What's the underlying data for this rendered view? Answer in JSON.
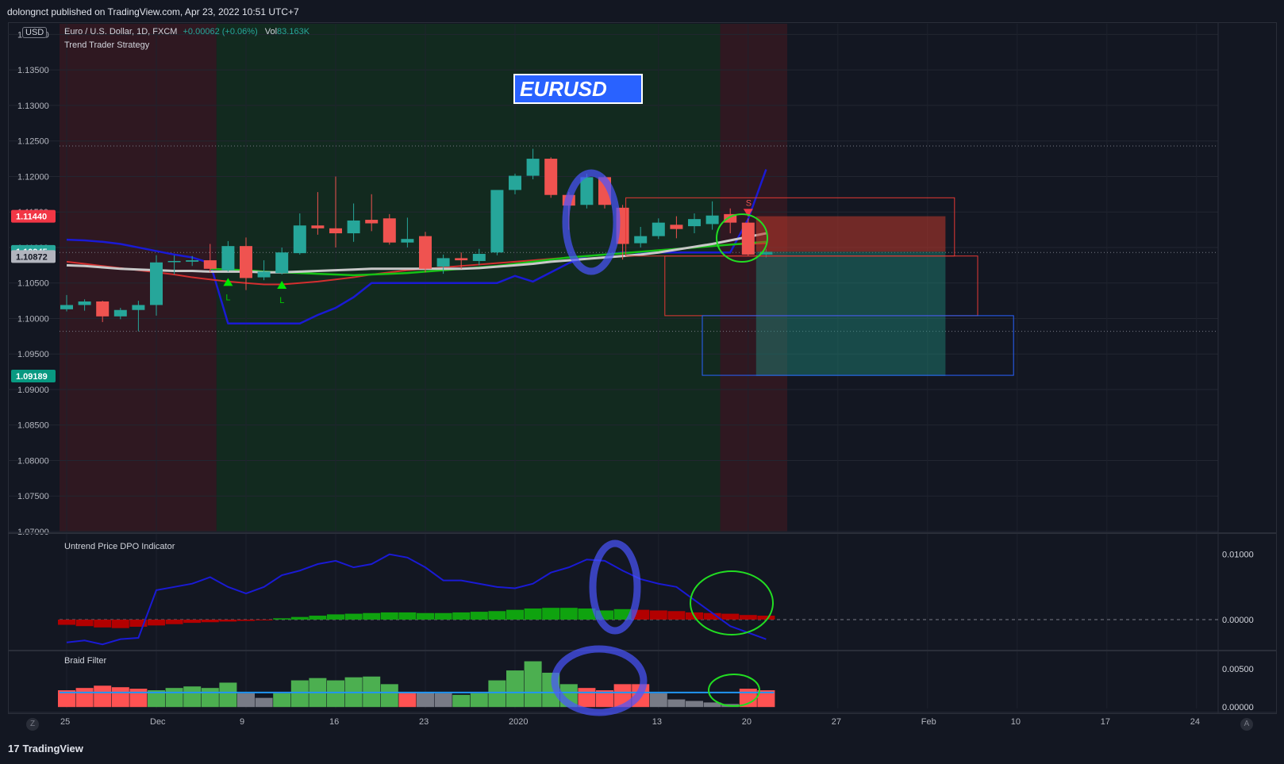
{
  "publisher_line": "dolongnct published on TradingView.com, Apr 23, 2022 10:51 UTC+7",
  "footer_brand": "TradingView",
  "currency_button": "USD",
  "symbol_legend": {
    "symbol": "Euro / U.S. Dollar, 1D, FXCM",
    "change": "+0.00062 (+0.06%)",
    "vol_label": "Vol",
    "vol_value": "83.163K",
    "strategy": "Trend Trader Strategy"
  },
  "annotation_label": "EURUSD",
  "scale_buttons": {
    "z": "Z",
    "a": "A"
  },
  "price_labels": [
    {
      "text": "1.11440",
      "value": 1.1144,
      "color": "#f23645"
    },
    {
      "text": "1.10945",
      "value": 1.10945,
      "color": "#26a69a"
    },
    {
      "text": "1.10872",
      "value": 1.10872,
      "color": "#b2b5be"
    },
    {
      "text": "1.09189",
      "value": 1.09189,
      "color": "#089981"
    }
  ],
  "chart_data": [
    {
      "type": "candlestick",
      "title": "Euro / U.S. Dollar, 1D, FXCM",
      "ylim": [
        1.07,
        1.1415
      ],
      "y_ticks": [
        "1.07000",
        "1.07500",
        "1.08000",
        "1.08500",
        "1.09000",
        "1.09500",
        "1.10000",
        "1.10500",
        "1.11000",
        "1.11500",
        "1.12000",
        "1.12500",
        "1.13000",
        "1.13500",
        "1.14000"
      ],
      "x_ticks": [
        "25",
        "Dec",
        "9",
        "16",
        "23",
        "2020",
        "13",
        "20",
        "27",
        "Feb",
        "10",
        "17",
        "24"
      ],
      "candles": [
        [
          1.1013,
          1.1033,
          1.101,
          1.1019
        ],
        [
          1.1019,
          1.1027,
          1.1011,
          1.1024
        ],
        [
          1.1024,
          1.1025,
          1.0995,
          1.1003
        ],
        [
          1.1003,
          1.1015,
          1.0999,
          1.1012
        ],
        [
          1.1012,
          1.1025,
          1.0982,
          1.1019
        ],
        [
          1.1019,
          1.1089,
          1.1004,
          1.1079
        ],
        [
          1.108,
          1.1089,
          1.1062,
          1.1081
        ],
        [
          1.108,
          1.1088,
          1.1074,
          1.1082
        ],
        [
          1.1082,
          1.1105,
          1.1065,
          1.107
        ],
        [
          1.1068,
          1.1109,
          1.1066,
          1.1102
        ],
        [
          1.1102,
          1.1114,
          1.104,
          1.1057
        ],
        [
          1.1058,
          1.1082,
          1.1054,
          1.1066
        ],
        [
          1.1064,
          1.11,
          1.1062,
          1.1093
        ],
        [
          1.1092,
          1.1148,
          1.109,
          1.1131
        ],
        [
          1.1131,
          1.1178,
          1.1118,
          1.1127
        ],
        [
          1.1127,
          1.12,
          1.11,
          1.112
        ],
        [
          1.112,
          1.1162,
          1.1108,
          1.1138
        ],
        [
          1.1139,
          1.1175,
          1.1123,
          1.1134
        ],
        [
          1.1141,
          1.1147,
          1.1104,
          1.1107
        ],
        [
          1.1107,
          1.1142,
          1.11,
          1.1112
        ],
        [
          1.1116,
          1.1122,
          1.1065,
          1.107
        ],
        [
          1.1073,
          1.109,
          1.1063,
          1.1085
        ],
        [
          1.1085,
          1.1093,
          1.107,
          1.1082
        ],
        [
          1.1081,
          1.1098,
          1.1075,
          1.1091
        ],
        [
          1.1093,
          1.1175,
          1.1089,
          1.1181
        ],
        [
          1.1181,
          1.1204,
          1.1175,
          1.1201
        ],
        [
          1.1201,
          1.1239,
          1.1196,
          1.1225
        ],
        [
          1.1225,
          1.1227,
          1.117,
          1.1174
        ],
        [
          1.1174,
          1.1178,
          1.1125,
          1.1159
        ],
        [
          1.116,
          1.1204,
          1.1155,
          1.1199
        ],
        [
          1.1199,
          1.1201,
          1.1155,
          1.116
        ],
        [
          1.1156,
          1.116,
          1.1083,
          1.1105
        ],
        [
          1.1106,
          1.1129,
          1.11,
          1.1116
        ],
        [
          1.1116,
          1.1141,
          1.1112,
          1.1135
        ],
        [
          1.1132,
          1.1144,
          1.1113,
          1.1126
        ],
        [
          1.113,
          1.1148,
          1.112,
          1.114
        ],
        [
          1.1133,
          1.1165,
          1.1125,
          1.1145
        ],
        [
          1.1147,
          1.1155,
          1.112,
          1.1135
        ],
        [
          1.1135,
          1.1141,
          1.1088,
          1.109
        ],
        [
          1.109,
          1.1098,
          1.1086,
          1.1094
        ]
      ],
      "ma_white": [
        1.1075,
        1.1074,
        1.1072,
        1.107,
        1.1069,
        1.1068,
        1.1067,
        1.1067,
        1.1066,
        1.1066,
        1.1066,
        1.1065,
        1.1065,
        1.1066,
        1.1067,
        1.1068,
        1.1069,
        1.107,
        1.107,
        1.107,
        1.107,
        1.107,
        1.107,
        1.1071,
        1.1073,
        1.1075,
        1.1077,
        1.108,
        1.1082,
        1.1084,
        1.1086,
        1.1088,
        1.109,
        1.1093,
        1.1097,
        1.1101,
        1.1105,
        1.111,
        1.1115,
        1.112
      ],
      "ma_red": [
        1.108,
        1.1077,
        1.1074,
        1.1071,
        1.1068,
        1.1065,
        1.1062,
        1.1058,
        1.1055,
        1.1052,
        1.105,
        1.1048,
        1.1048,
        1.105,
        1.1052,
        1.1055,
        1.1058,
        1.1062,
        1.1065,
        1.1068,
        1.107,
        1.1072,
        1.1074,
        1.1076,
        1.1078,
        1.108,
        1.1082,
        1.1084,
        1.1086,
        1.1088,
        1.109,
        1.1092,
        1.1094,
        1.1096,
        1.1098,
        1.11,
        1.1102,
        1.1104,
        1.1105,
        1.1106
      ],
      "ma_green": [
        null,
        null,
        null,
        null,
        null,
        null,
        null,
        null,
        1.107,
        1.1069,
        1.1068,
        1.1066,
        1.1065,
        1.1064,
        1.1063,
        1.1062,
        1.1061,
        1.1062,
        1.1063,
        1.1064,
        1.1066,
        1.1068,
        1.107,
        1.1072,
        1.1074,
        1.1077,
        1.108,
        1.1083,
        1.1086,
        1.1088,
        1.109,
        1.1092,
        1.1094,
        1.1096,
        1.1098,
        1.11,
        1.1102,
        1.1104,
        1.1106,
        1.1108
      ],
      "trail_blue": [
        1.1111,
        1.111,
        1.1108,
        1.1105,
        1.11,
        1.1095,
        1.109,
        1.1086,
        1.1078,
        1.0993,
        1.0993,
        1.0993,
        1.0993,
        1.0993,
        1.1005,
        1.1015,
        1.103,
        1.105,
        1.105,
        1.105,
        1.105,
        1.105,
        1.105,
        1.105,
        1.105,
        1.106,
        1.1052,
        1.1065,
        1.1078,
        1.1088,
        1.109,
        1.1093,
        1.1093,
        1.1093,
        1.1093,
        1.1093,
        1.1093,
        1.1093,
        1.114,
        1.121
      ],
      "signals": [
        {
          "label": "L",
          "index": 9,
          "dir": "long"
        },
        {
          "label": "L",
          "index": 12,
          "dir": "long"
        },
        {
          "label": "S",
          "index": 38,
          "dir": "short"
        }
      ]
    },
    {
      "type": "bar",
      "title": "Untrend Price DPO Indicator",
      "ylim": [
        -0.0045,
        0.013
      ],
      "y_ticks": [
        "0.01000",
        "0.00000"
      ],
      "values": [
        -0.0008,
        -0.001,
        -0.0012,
        -0.0013,
        -0.0011,
        -0.0009,
        -0.0007,
        -0.0005,
        -0.0004,
        -0.0003,
        -0.0002,
        -0.0001,
        0.0002,
        0.0004,
        0.0006,
        0.0008,
        0.0009,
        0.001,
        0.0011,
        0.0011,
        0.001,
        0.001,
        0.0011,
        0.0012,
        0.0013,
        0.0015,
        0.0017,
        0.0018,
        0.0018,
        0.0017,
        0.0014,
        0.0016,
        0.0015,
        0.0014,
        0.0013,
        0.0011,
        0.001,
        0.0009,
        0.0007,
        0.0006
      ],
      "line": [
        -0.0035,
        -0.0032,
        -0.0038,
        -0.003,
        -0.0028,
        0.0045,
        0.005,
        0.0055,
        0.0065,
        0.005,
        0.004,
        0.005,
        0.0068,
        0.0075,
        0.0085,
        0.009,
        0.008,
        0.0085,
        0.01,
        0.0095,
        0.008,
        0.006,
        0.006,
        0.0055,
        0.005,
        0.0048,
        0.0055,
        0.0072,
        0.008,
        0.0092,
        0.009,
        0.0075,
        0.0062,
        0.0055,
        0.005,
        0.003,
        0.001,
        -0.001,
        -0.002,
        -0.003
      ]
    },
    {
      "type": "bar",
      "title": "Braid Filter",
      "ylim": [
        -0.0005,
        0.0072
      ],
      "y_ticks": [
        "0.00500",
        "0.00000"
      ],
      "values": [
        0.0022,
        0.0025,
        0.0028,
        0.0026,
        0.0024,
        0.0022,
        0.0025,
        0.0027,
        0.0025,
        0.0032,
        0.0018,
        0.0012,
        0.0018,
        0.0035,
        0.0038,
        0.0035,
        0.0039,
        0.004,
        0.003,
        0.002,
        0.002,
        0.0018,
        0.0016,
        0.0018,
        0.0035,
        0.0048,
        0.006,
        0.0045,
        0.003,
        0.0025,
        0.0022,
        0.003,
        0.003,
        0.0018,
        0.001,
        0.0008,
        0.0006,
        0.0004,
        0.0024,
        0.0022
      ],
      "colors": [
        "r",
        "r",
        "r",
        "r",
        "r",
        "g",
        "g",
        "g",
        "g",
        "g",
        "x",
        "x",
        "g",
        "g",
        "g",
        "g",
        "g",
        "g",
        "g",
        "r",
        "x",
        "x",
        "g",
        "g",
        "g",
        "g",
        "g",
        "g",
        "g",
        "r",
        "r",
        "r",
        "r",
        "x",
        "x",
        "x",
        "x",
        "x",
        "r",
        "r"
      ],
      "threshold": 0.0019
    }
  ]
}
